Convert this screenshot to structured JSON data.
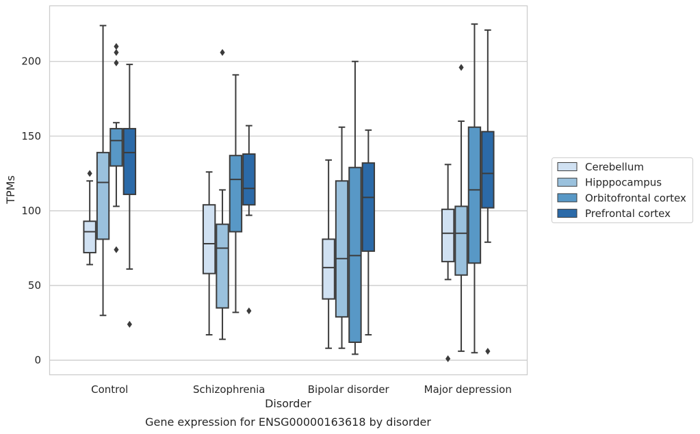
{
  "chart_data": {
    "type": "boxplot",
    "xlabel": "Disorder",
    "ylabel": "TPMs",
    "caption": "Gene expression for ENSG00000163618 by disorder",
    "ylim": [
      -10,
      237
    ],
    "yticks": [
      0,
      50,
      100,
      150,
      200
    ],
    "grid": "horizontal",
    "legend_position": "right",
    "categories": [
      "Control",
      "Schizophrenia",
      "Bipolar disorder",
      "Major depression"
    ],
    "series": [
      {
        "name": "Cerebellum",
        "color": "#d0e1f2",
        "boxes": [
          {
            "whisker_low": 64,
            "q1": 72,
            "median": 86,
            "q3": 93,
            "whisker_high": 120,
            "outliers": [
              125
            ]
          },
          {
            "whisker_low": 17,
            "q1": 58,
            "median": 78,
            "q3": 104,
            "whisker_high": 126,
            "outliers": []
          },
          {
            "whisker_low": 8,
            "q1": 41,
            "median": 62,
            "q3": 81,
            "whisker_high": 134,
            "outliers": []
          },
          {
            "whisker_low": 54,
            "q1": 66,
            "median": 85,
            "q3": 101,
            "whisker_high": 131,
            "outliers": [
              1
            ]
          }
        ]
      },
      {
        "name": "Hipppocampus",
        "color": "#9ac1dd",
        "boxes": [
          {
            "whisker_low": 30,
            "q1": 81,
            "median": 119,
            "q3": 139,
            "whisker_high": 224,
            "outliers": []
          },
          {
            "whisker_low": 14,
            "q1": 35,
            "median": 75,
            "q3": 91,
            "whisker_high": 114,
            "outliers": [
              206
            ]
          },
          {
            "whisker_low": 8,
            "q1": 29,
            "median": 68,
            "q3": 120,
            "whisker_high": 156,
            "outliers": []
          },
          {
            "whisker_low": 6,
            "q1": 57,
            "median": 85,
            "q3": 103,
            "whisker_high": 160,
            "outliers": [
              196
            ]
          }
        ]
      },
      {
        "name": "Orbitofrontal cortex",
        "color": "#5898c6",
        "boxes": [
          {
            "whisker_low": 103,
            "q1": 130,
            "median": 147,
            "q3": 155,
            "whisker_high": 159,
            "outliers": [
              74,
              199,
              206,
              210
            ]
          },
          {
            "whisker_low": 32,
            "q1": 86,
            "median": 121,
            "q3": 137,
            "whisker_high": 191,
            "outliers": []
          },
          {
            "whisker_low": 4,
            "q1": 12,
            "median": 70,
            "q3": 129,
            "whisker_high": 200,
            "outliers": []
          },
          {
            "whisker_low": 5,
            "q1": 65,
            "median": 114,
            "q3": 156,
            "whisker_high": 225,
            "outliers": []
          }
        ]
      },
      {
        "name": "Prefrontal cortex",
        "color": "#2b6aa8",
        "boxes": [
          {
            "whisker_low": 61,
            "q1": 111,
            "median": 139,
            "q3": 155,
            "whisker_high": 198,
            "outliers": [
              24
            ]
          },
          {
            "whisker_low": 97,
            "q1": 104,
            "median": 115,
            "q3": 138,
            "whisker_high": 157,
            "outliers": [
              33
            ]
          },
          {
            "whisker_low": 17,
            "q1": 73,
            "median": 109,
            "q3": 132,
            "whisker_high": 154,
            "outliers": []
          },
          {
            "whisker_low": 79,
            "q1": 102,
            "median": 125,
            "q3": 153,
            "whisker_high": 221,
            "outliers": [
              6
            ]
          }
        ]
      }
    ]
  }
}
